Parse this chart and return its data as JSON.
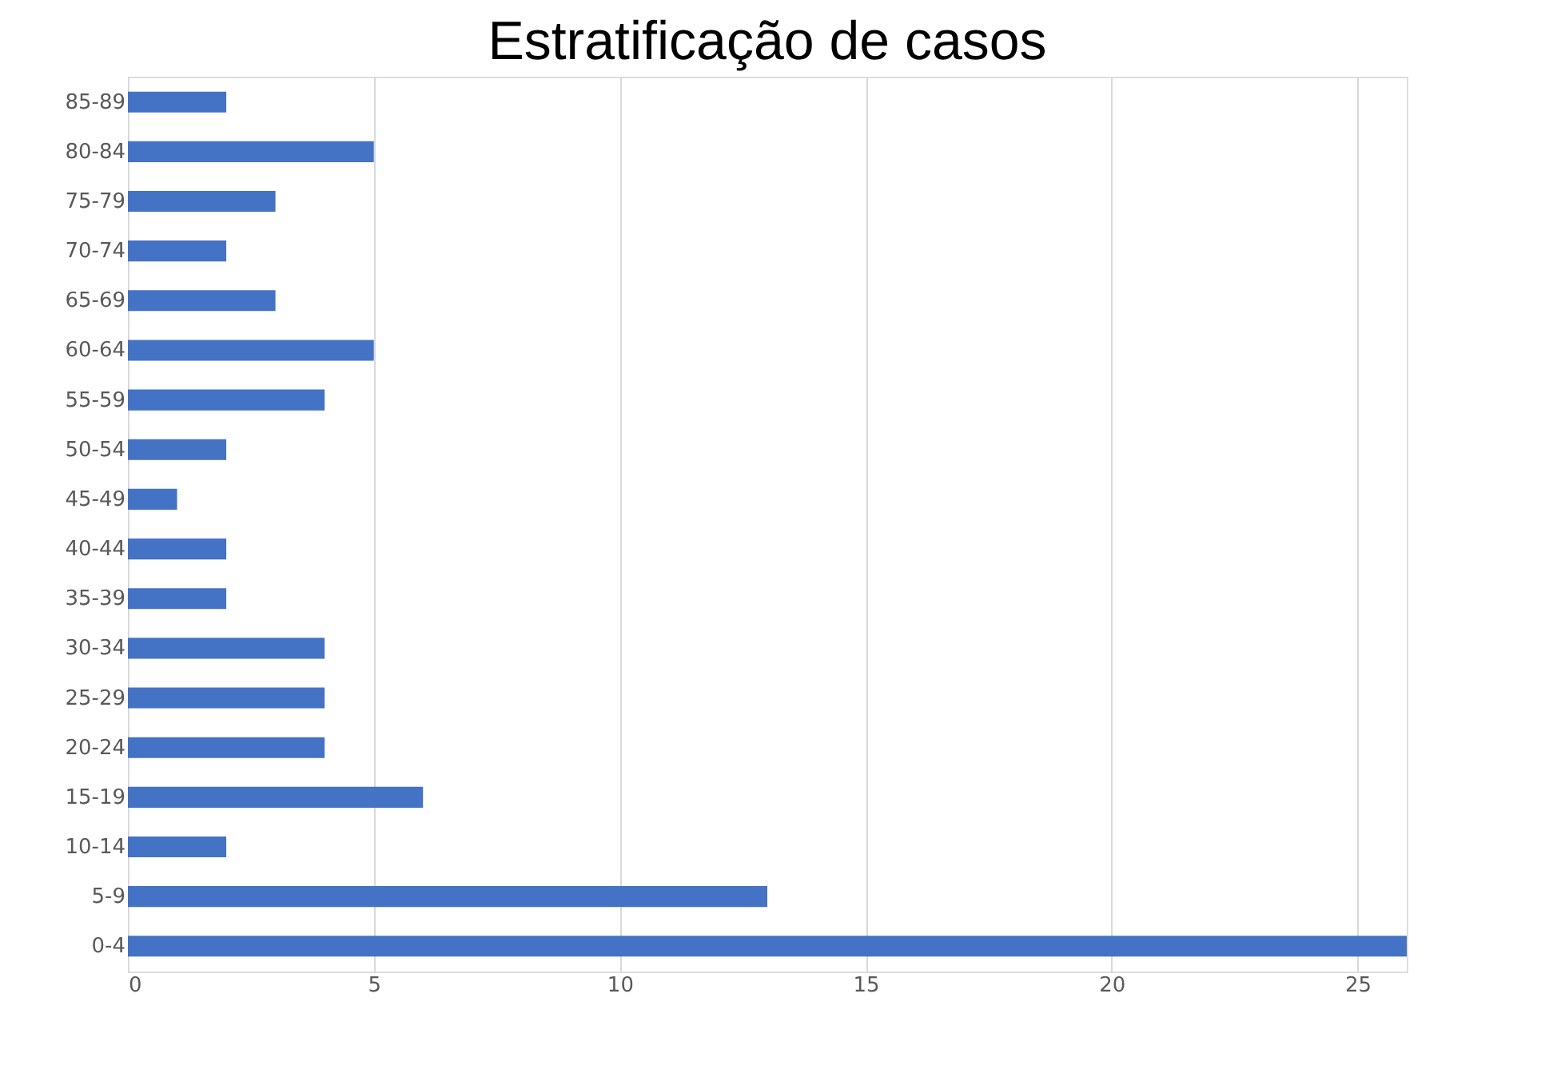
{
  "chart_data": {
    "type": "bar",
    "orientation": "horizontal",
    "title": "Estratificação de casos",
    "categories": [
      "85-89",
      "80-84",
      "75-79",
      "70-74",
      "65-69",
      "60-64",
      "55-59",
      "50-54",
      "45-49",
      "40-44",
      "35-39",
      "30-34",
      "25-29",
      "20-24",
      "15-19",
      "10-14",
      "5-9",
      "0-4"
    ],
    "values": [
      2,
      5,
      3,
      2,
      3,
      5,
      4,
      2,
      1,
      2,
      2,
      4,
      4,
      4,
      6,
      2,
      13,
      26
    ],
    "color": "#4472c4",
    "xlim": [
      0,
      26
    ],
    "xticks": [
      0,
      5,
      10,
      15,
      20,
      25
    ],
    "grid": "x"
  }
}
